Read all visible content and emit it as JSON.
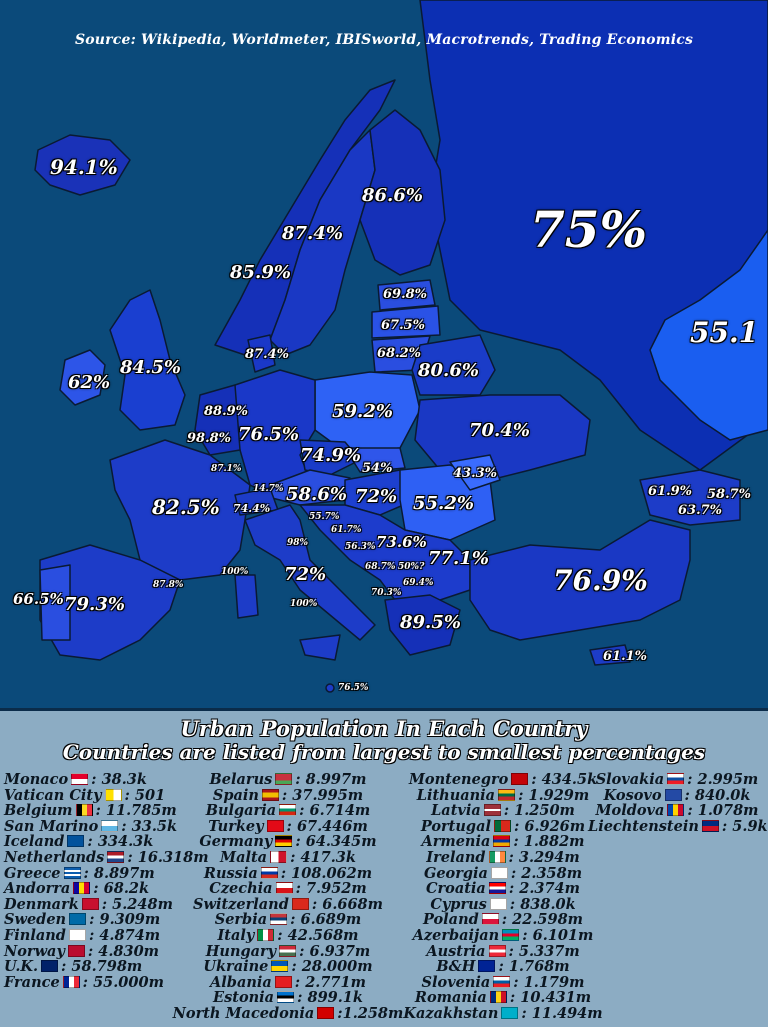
{
  "source": "Source: Wikipedia, Worldmeter, IBISworld, Macrotrends, Trading Economics",
  "map_labels": {
    "iceland": "94.1%",
    "sweden": "87.4%",
    "finland": "86.6%",
    "norway": "85.9%",
    "russia": "75%",
    "kazakhstan": "55.1",
    "estonia": "69.8%",
    "latvia": "67.5%",
    "lithuania": "68.2%",
    "belarus": "80.6%",
    "ireland": "62%",
    "uk": "84.5%",
    "denmark": "87.4%",
    "netherlands": "88.9%",
    "belgium": "98.8%",
    "germany": "76.5%",
    "poland": "59.2%",
    "ukraine": "70.4%",
    "czechia": "74.9%",
    "slovakia": "54%",
    "moldova": "43.3%",
    "luxembourg": "87.1%",
    "france": "82.5%",
    "liechtenstein": "14.7%",
    "switzerland": "74.4%",
    "austria": "58.6%",
    "hungary": "72%",
    "romania": "55.2%",
    "slovenia": "55.7%",
    "croatia": "61.7%",
    "bih": "56.3%",
    "serbia": "73.6%",
    "montenegro": "68.7%",
    "kosovo": "50%?",
    "bulgaria": "77.1%",
    "north_macedonia": "69.4%",
    "albania": "70.3%",
    "san_marino": "98%",
    "vatican": "100%",
    "italy": "72%",
    "malta": "100%",
    "greece": "89.5%",
    "georgia": "61.9%",
    "azerbaijan": "58.7%",
    "armenia": "63.7%",
    "turkey": "76.9%",
    "cyprus": "61.1%",
    "portugal": "66.5%",
    "spain": "79.3%",
    "andorra": "87.8%",
    "monaco": "100%",
    "cyprus_small": "76.5%"
  },
  "title1": "Urban Population In Each Country",
  "title2": "Countries are listed from largest to smallest percentages",
  "columns": [
    [
      {
        "name": "Monaco",
        "value": ": 38.3k",
        "flag": "monaco"
      },
      {
        "name": "Vatican City",
        "value": ": 501",
        "flag": "vatican"
      },
      {
        "name": "Belgium",
        "value": ": 11.785m",
        "flag": "belgium"
      },
      {
        "name": "San Marino",
        "value": ": 33.5k",
        "flag": "sanmarino"
      },
      {
        "name": "Iceland",
        "value": ": 334.3k",
        "flag": "iceland"
      },
      {
        "name": "Netherlands",
        "value": ": 16.318m",
        "flag": "netherlands"
      },
      {
        "name": "Greece",
        "value": ": 8.897m",
        "flag": "greece"
      },
      {
        "name": "Andorra",
        "value": ": 68.2k",
        "flag": "andorra"
      },
      {
        "name": "Denmark",
        "value": ": 5.248m",
        "flag": "denmark"
      },
      {
        "name": "Sweden",
        "value": ": 9.309m",
        "flag": "sweden"
      },
      {
        "name": "Finland",
        "value": ": 4.874m",
        "flag": "finland"
      },
      {
        "name": "Norway",
        "value": ": 4.830m",
        "flag": "norway"
      },
      {
        "name": "U.K.",
        "value": ": 58.798m",
        "flag": "uk"
      },
      {
        "name": "France",
        "value": ": 55.000m",
        "flag": "france"
      }
    ],
    [
      {
        "name": "Belarus",
        "value": ": 8.997m",
        "flag": "belarus"
      },
      {
        "name": "Spain",
        "value": ": 37.995m",
        "flag": "spain"
      },
      {
        "name": "Bulgaria",
        "value": ": 6.714m",
        "flag": "bulgaria"
      },
      {
        "name": "Turkey",
        "value": ": 67.446m",
        "flag": "turkey"
      },
      {
        "name": "Germany",
        "value": ": 64.345m",
        "flag": "germany"
      },
      {
        "name": "Malta",
        "value": ": 417.3k",
        "flag": "malta"
      },
      {
        "name": "Russia",
        "value": ": 108.062m",
        "flag": "russia"
      },
      {
        "name": "Czechia",
        "value": ": 7.952m",
        "flag": "czechia"
      },
      {
        "name": "Switzerland",
        "value": ": 6.668m",
        "flag": "switzerland"
      },
      {
        "name": "Serbia",
        "value": ": 6.689m",
        "flag": "serbia"
      },
      {
        "name": "Italy",
        "value": ": 42.568m",
        "flag": "italy"
      },
      {
        "name": "Hungary",
        "value": ": 6.937m",
        "flag": "hungary"
      },
      {
        "name": "Ukraine",
        "value": ": 28.000m",
        "flag": "ukraine"
      },
      {
        "name": "Albania",
        "value": ": 2.771m",
        "flag": "albania"
      },
      {
        "name": "Estonia",
        "value": ": 899.1k",
        "flag": "estonia"
      },
      {
        "name": "North Macedonia",
        "value": ":1.258m",
        "flag": "northmacedonia"
      }
    ],
    [
      {
        "name": "Montenegro",
        "value": ": 434.5k",
        "flag": "montenegro"
      },
      {
        "name": "Lithuania",
        "value": ": 1.929m",
        "flag": "lithuania"
      },
      {
        "name": "Latvia",
        "value": ": 1.250m",
        "flag": "latvia"
      },
      {
        "name": "Portugal",
        "value": ": 6.926m",
        "flag": "portugal"
      },
      {
        "name": "Armenia",
        "value": ": 1.882m",
        "flag": "armenia"
      },
      {
        "name": "Ireland",
        "value": ": 3.294m",
        "flag": "ireland"
      },
      {
        "name": "Georgia",
        "value": ": 2.358m",
        "flag": "georgia"
      },
      {
        "name": "Croatia",
        "value": ": 2.374m",
        "flag": "croatia"
      },
      {
        "name": "Cyprus",
        "value": ": 838.0k",
        "flag": "cyprus"
      },
      {
        "name": "Poland",
        "value": ": 22.598m",
        "flag": "poland"
      },
      {
        "name": "Azerbaijan",
        "value": ": 6.101m",
        "flag": "azerbaijan"
      },
      {
        "name": "Austria",
        "value": ": 5.337m",
        "flag": "austria"
      },
      {
        "name": "B&H",
        "value": ": 1.768m",
        "flag": "bih"
      },
      {
        "name": "Slovenia",
        "value": ": 1.179m",
        "flag": "slovenia"
      },
      {
        "name": "Romania",
        "value": ": 10.431m",
        "flag": "romania"
      },
      {
        "name": "Kazakhstan",
        "value": ": 11.494m",
        "flag": "kazakhstan"
      }
    ],
    [
      {
        "name": "Slovakia",
        "value": ": 2.995m",
        "flag": "slovakia"
      },
      {
        "name": "Kosovo",
        "value": ": 840.0k",
        "flag": "kosovo"
      },
      {
        "name": "Moldova",
        "value": ": 1.078m",
        "flag": "moldova"
      },
      {
        "name": "Liechtenstein",
        "value": ": 5.9k",
        "flag": "liechtenstein"
      }
    ]
  ],
  "flag_colors": {
    "monaco": "linear-gradient(#e4002b 50%,#ffffff 50%)",
    "vatican": "linear-gradient(90deg,#ffe000 50%,#ffffff 50%)",
    "belgium": "linear-gradient(90deg,#000000 33%,#fdda24 33% 66%,#ef3340 66%)",
    "sanmarino": "linear-gradient(#ffffff 50%,#5eb6e4 50%)",
    "iceland": "linear-gradient(#02529c,#02529c)",
    "netherlands": "linear-gradient(#ae1c28 33%,#ffffff 33% 66%,#21468b 66%)",
    "greece": "repeating-linear-gradient(#0d5eaf 0 2px,#ffffff 2px 4px)",
    "andorra": "linear-gradient(90deg,#10069f 33%,#fedd00 33% 66%,#d50032 66%)",
    "denmark": "linear-gradient(#c8102e,#c8102e)",
    "sweden": "linear-gradient(#006aa7,#006aa7)",
    "finland": "linear-gradient(#ffffff,#ffffff)",
    "norway": "linear-gradient(#ba0c2f,#ba0c2f)",
    "uk": "linear-gradient(#012169,#012169)",
    "france": "linear-gradient(90deg,#002395 33%,#ffffff 33% 66%,#ed2939 66%)",
    "belarus": "linear-gradient(#c8313e 66%,#4aa657 66%)",
    "spain": "linear-gradient(#aa151b 25%,#f1bf00 25% 75%,#aa151b 75%)",
    "bulgaria": "linear-gradient(#ffffff 33%,#00966e 33% 66%,#d62612 66%)",
    "turkey": "linear-gradient(#e30a17,#e30a17)",
    "germany": "linear-gradient(#000000 33%,#dd0000 33% 66%,#ffce00 66%)",
    "malta": "linear-gradient(90deg,#ffffff 50%,#cf142b 50%)",
    "russia": "linear-gradient(#ffffff 33%,#0039a6 33% 66%,#d52b1e 66%)",
    "czechia": "linear-gradient(#ffffff 50%,#d7141a 50%)",
    "switzerland": "linear-gradient(#da291c,#da291c)",
    "serbia": "linear-gradient(#c6363c 33%,#0c4076 33% 66%,#ffffff 66%)",
    "italy": "linear-gradient(90deg,#009246 33%,#ffffff 33% 66%,#ce2b37 66%)",
    "hungary": "linear-gradient(#ce2939 33%,#ffffff 33% 66%,#477050 66%)",
    "ukraine": "linear-gradient(#0057b7 50%,#ffd700 50%)",
    "albania": "linear-gradient(#e41e20,#e41e20)",
    "estonia": "linear-gradient(#0072ce 33%,#000000 33% 66%,#ffffff 66%)",
    "northmacedonia": "linear-gradient(#d20000,#d20000)",
    "montenegro": "linear-gradient(#c40308,#c40308)",
    "lithuania": "linear-gradient(#fdb913 33%,#006a44 33% 66%,#c1272d 66%)",
    "latvia": "linear-gradient(#9e3039 40%,#ffffff 40% 60%,#9e3039 60%)",
    "portugal": "linear-gradient(90deg,#046a38 40%,#da291c 40%)",
    "armenia": "linear-gradient(#d90012 33%,#0033a0 33% 66%,#f2a800 66%)",
    "ireland": "linear-gradient(90deg,#169b62 33%,#ffffff 33% 66%,#ff883e 66%)",
    "georgia": "linear-gradient(#ffffff,#ffffff)",
    "croatia": "linear-gradient(#ff0000 33%,#ffffff 33% 66%,#171796 66%)",
    "cyprus": "linear-gradient(#ffffff,#ffffff)",
    "poland": "linear-gradient(#ffffff 50%,#dc143c 50%)",
    "azerbaijan": "linear-gradient(#0092bc 33%,#e4002b 33% 66%,#00af66 66%)",
    "austria": "linear-gradient(#ed2939 33%,#ffffff 33% 66%,#ed2939 66%)",
    "bih": "linear-gradient(#002395,#002395)",
    "slovenia": "linear-gradient(#ffffff 33%,#005da4 33% 66%,#ed1c24 66%)",
    "romania": "linear-gradient(90deg,#002b7f 33%,#fcd116 33% 66%,#ce1126 66%)",
    "kazakhstan": "linear-gradient(#00afca,#00afca)",
    "slovakia": "linear-gradient(#ffffff 33%,#0b4ea2 33% 66%,#ee1c25 66%)",
    "kosovo": "linear-gradient(#244aa5,#244aa5)",
    "moldova": "linear-gradient(90deg,#0046ae 33%,#ffd200 33% 66%,#cc092f 66%)",
    "liechtenstein": "linear-gradient(#002b7f 50%,#ce1126 50%)"
  }
}
